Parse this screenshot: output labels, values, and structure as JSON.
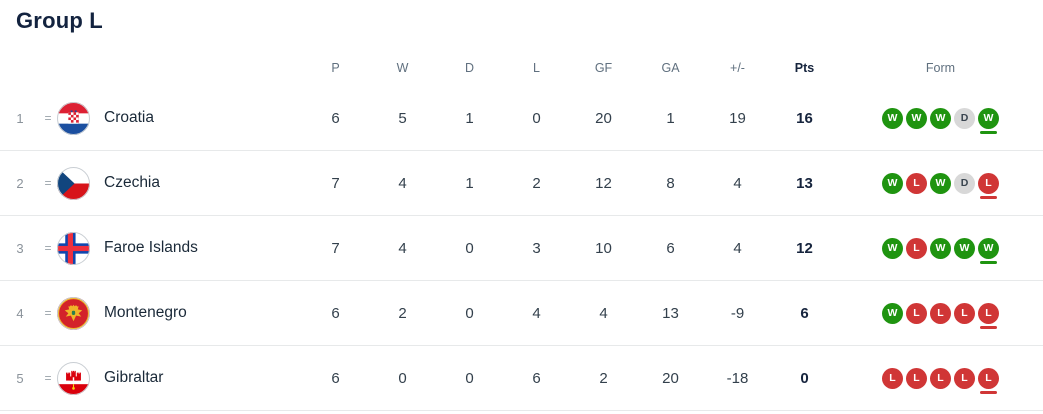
{
  "title": "Group L",
  "colors": {
    "win": "#1f9410",
    "loss": "#d03636",
    "draw": "#d8d8d8",
    "header_text": "#60707f",
    "dark_text": "#16243d"
  },
  "table": {
    "headers": {
      "p": "P",
      "w": "W",
      "d": "D",
      "l": "L",
      "gf": "GF",
      "ga": "GA",
      "gd": "+/-",
      "pts": "Pts",
      "form": "Form"
    },
    "rows": [
      {
        "position": "1",
        "movement": "=",
        "flag": "croatia",
        "flag_icon": "croatia-flag-icon",
        "team": "Croatia",
        "p": "6",
        "w": "5",
        "d": "1",
        "l": "0",
        "gf": "20",
        "ga": "1",
        "gd": "19",
        "pts": "16",
        "form": [
          {
            "result": "W"
          },
          {
            "result": "W"
          },
          {
            "result": "W"
          },
          {
            "result": "D"
          },
          {
            "result": "W",
            "latest": true
          }
        ]
      },
      {
        "position": "2",
        "movement": "=",
        "flag": "czechia",
        "flag_icon": "czechia-flag-icon",
        "team": "Czechia",
        "p": "7",
        "w": "4",
        "d": "1",
        "l": "2",
        "gf": "12",
        "ga": "8",
        "gd": "4",
        "pts": "13",
        "form": [
          {
            "result": "W"
          },
          {
            "result": "L"
          },
          {
            "result": "W"
          },
          {
            "result": "D"
          },
          {
            "result": "L",
            "latest": true
          }
        ]
      },
      {
        "position": "3",
        "movement": "=",
        "flag": "faroe-islands",
        "flag_icon": "faroe-islands-flag-icon",
        "team": "Faroe Islands",
        "p": "7",
        "w": "4",
        "d": "0",
        "l": "3",
        "gf": "10",
        "ga": "6",
        "gd": "4",
        "pts": "12",
        "form": [
          {
            "result": "W"
          },
          {
            "result": "L"
          },
          {
            "result": "W"
          },
          {
            "result": "W"
          },
          {
            "result": "W",
            "latest": true
          }
        ]
      },
      {
        "position": "4",
        "movement": "=",
        "flag": "montenegro",
        "flag_icon": "montenegro-flag-icon",
        "team": "Montenegro",
        "p": "6",
        "w": "2",
        "d": "0",
        "l": "4",
        "gf": "4",
        "ga": "13",
        "gd": "-9",
        "pts": "6",
        "form": [
          {
            "result": "W"
          },
          {
            "result": "L"
          },
          {
            "result": "L"
          },
          {
            "result": "L"
          },
          {
            "result": "L",
            "latest": true
          }
        ]
      },
      {
        "position": "5",
        "movement": "=",
        "flag": "gibraltar",
        "flag_icon": "gibraltar-flag-icon",
        "team": "Gibraltar",
        "p": "6",
        "w": "0",
        "d": "0",
        "l": "6",
        "gf": "2",
        "ga": "20",
        "gd": "-18",
        "pts": "0",
        "form": [
          {
            "result": "L"
          },
          {
            "result": "L"
          },
          {
            "result": "L"
          },
          {
            "result": "L"
          },
          {
            "result": "L",
            "latest": true
          }
        ]
      }
    ]
  }
}
